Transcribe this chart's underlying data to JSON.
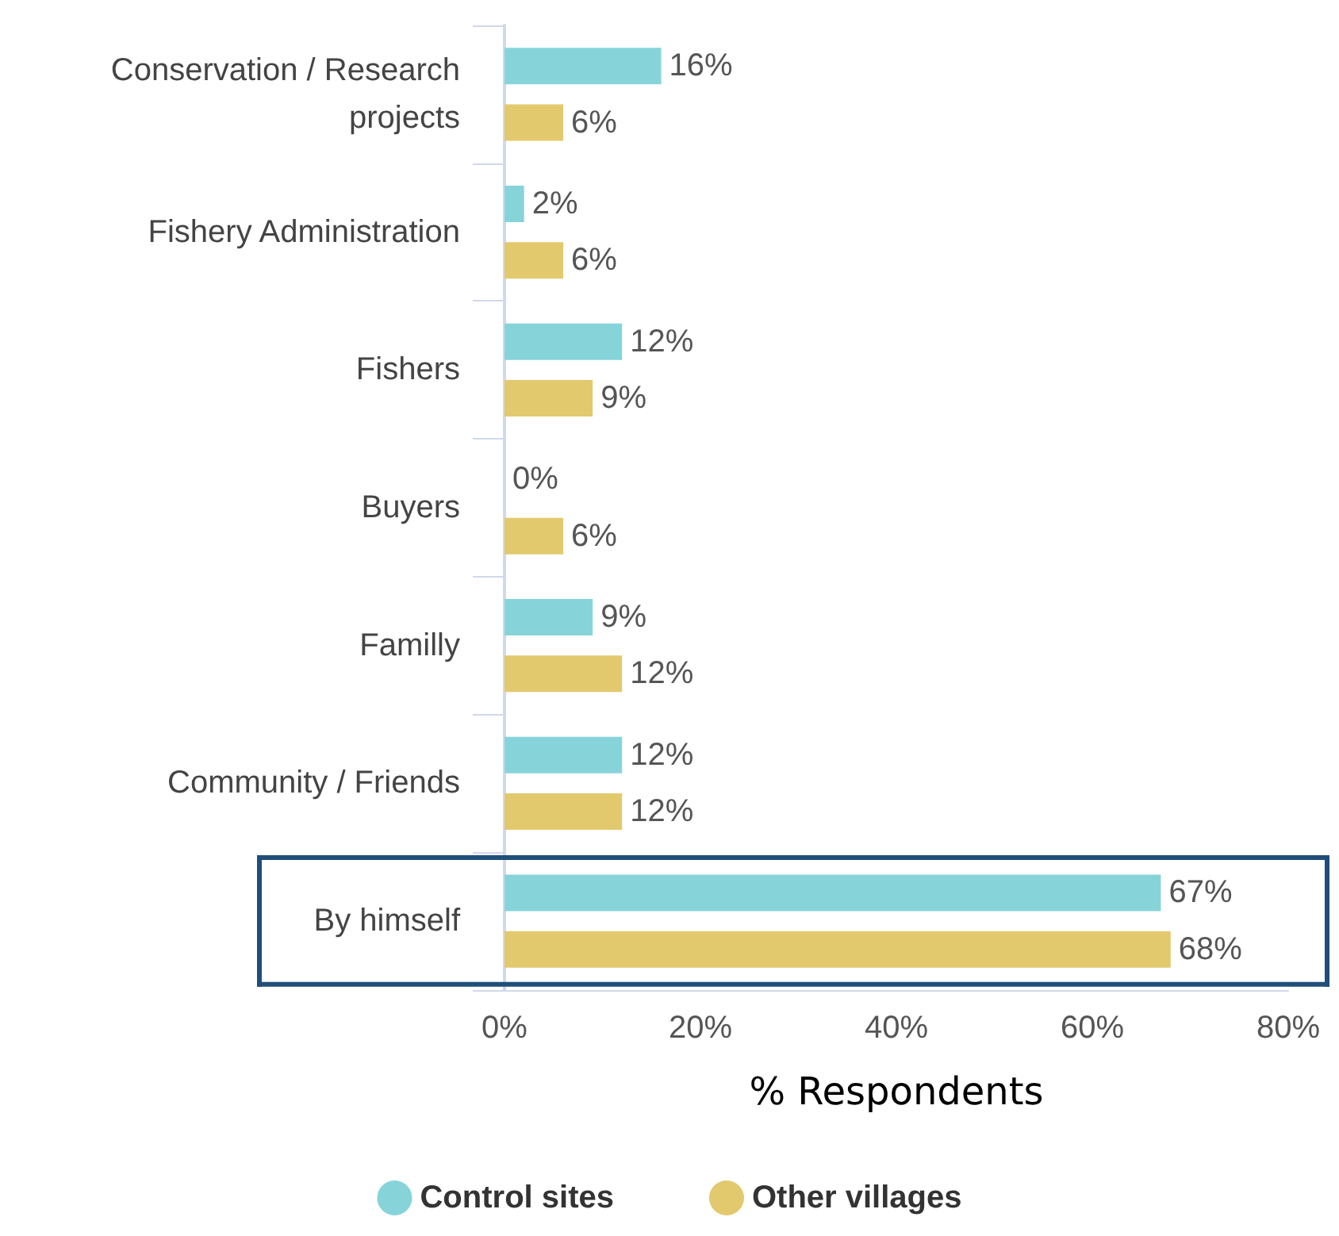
{
  "chart_data": {
    "type": "bar",
    "orientation": "horizontal",
    "xlabel": "% Respondents",
    "categories": [
      "Conservation / Research\nprojects",
      "Fishery Administration",
      "Fishers",
      "Buyers",
      "Familly",
      "Community / Friends",
      "By himself"
    ],
    "series": [
      {
        "name": "Control sites",
        "color": "#86d4da",
        "values": [
          16,
          2,
          12,
          0,
          9,
          12,
          67
        ],
        "value_labels": [
          "16%",
          "2%",
          "12%",
          "0%",
          "9%",
          "12%",
          "67%"
        ]
      },
      {
        "name": "Other villages",
        "color": "#e2c96e",
        "values": [
          6,
          6,
          9,
          6,
          12,
          12,
          68
        ],
        "value_labels": [
          "6%",
          "6%",
          "9%",
          "6%",
          "12%",
          "12%",
          "68%"
        ]
      }
    ],
    "xlim": [
      0,
      80
    ],
    "xticks": [
      {
        "value": 0,
        "label": "0%"
      },
      {
        "value": 20,
        "label": "20%"
      },
      {
        "value": 40,
        "label": "40%"
      },
      {
        "value": 60,
        "label": "60%"
      },
      {
        "value": 80,
        "label": "80%"
      }
    ],
    "grid": false,
    "legend": "bottom"
  }
}
